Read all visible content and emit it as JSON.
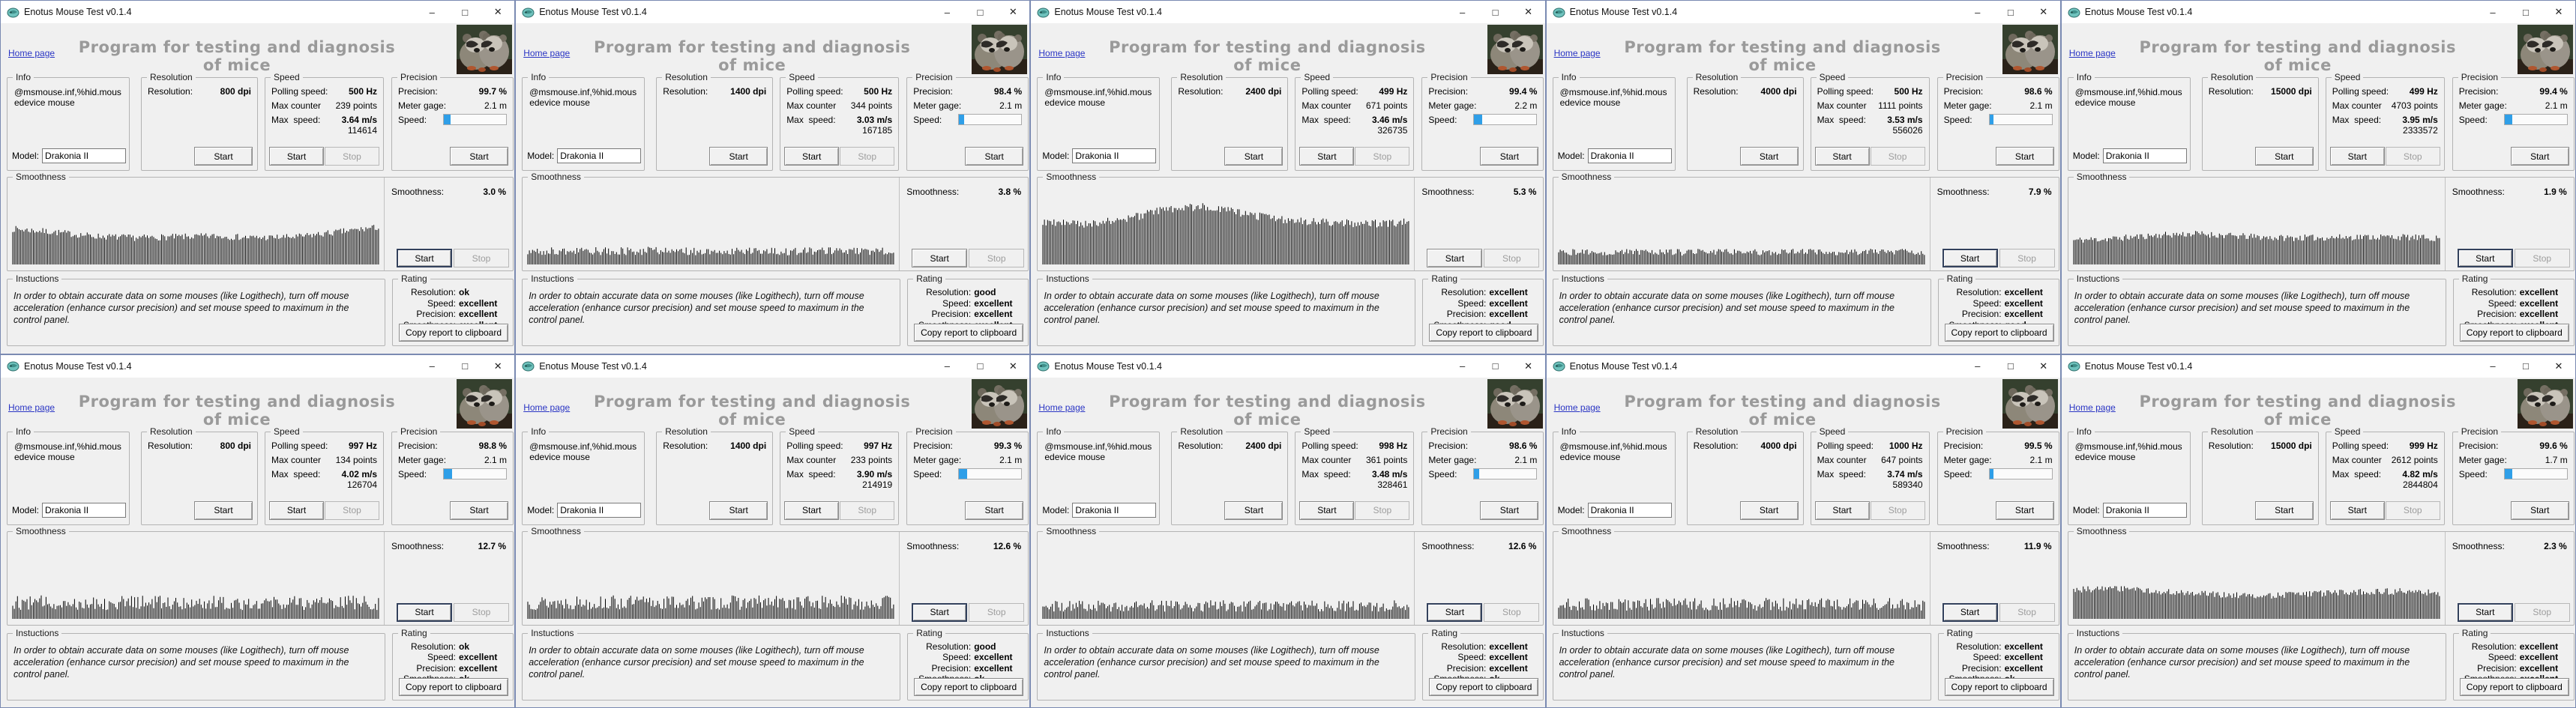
{
  "app": {
    "title": "Enotus Mouse Test v0.1.4",
    "home_link": "Home page",
    "heading": "Program for testing and diagnosis of mice",
    "info_text": "@msmouse.inf,%hid.mousedevice mouse",
    "model_value": "Drakonia II",
    "groups": {
      "info": "Info",
      "resolution": "Resolution",
      "speed": "Speed",
      "precision": "Precision",
      "smoothness": "Smoothness"
    },
    "labels": {
      "model": "Model:",
      "resolution": "Resolution:",
      "polling": "Polling speed:",
      "max_counter": "Max counter",
      "max_speed": "Max  speed:",
      "precision": "Precision:",
      "meter_gage": "Meter gage:",
      "speed": "Speed:",
      "smoothness": "Smoothness:"
    },
    "buttons": {
      "start": "Start",
      "stop": "Stop",
      "copy": "Copy report to clipboard"
    },
    "icons": {
      "minimize": "–",
      "maximize": "□",
      "close": "✕",
      "app": "raccoon-logo-icon"
    },
    "instructions_title": "Instuctions",
    "instructions_text": "In order to obtain accurate data on some mouses (like Logithech), turn off mouse acceleration (enhance cursor precision) and set mouse speed to maximum in the control panel.",
    "rating_title": "Rating",
    "rating_labels": {
      "resolution": "Resolution:",
      "speed": "Speed:",
      "precision": "Precision:",
      "smoothness": "Smoothness:"
    }
  },
  "colors": {
    "progress_blue": "#2f9fe8",
    "heading_gray": "#9a9a9a",
    "link_blue": "#2a35c4",
    "window_border": "#7a8ab2",
    "bar_color": "#000000"
  },
  "windows": [
    {
      "resolution": "800 dpi",
      "polling": "500 Hz",
      "max_counter": "239 points",
      "max_speed": "3.64 m/s",
      "counts": "114614",
      "precision": "99.7 %",
      "meter_gage": "2.1 m",
      "speed_fill_pct": 11,
      "smoothness": "3.0 %",
      "rating": {
        "resolution": "ok",
        "speed": "excellent",
        "precision": "excellent",
        "smoothness": "excellent"
      },
      "smoothness_start_focused": true,
      "histogram": {
        "envelope": [
          0.44,
          0.4,
          0.35,
          0.33,
          0.34,
          0.35,
          0.33,
          0.34,
          0.4,
          0.46
        ],
        "jitter": 0.04
      }
    },
    {
      "resolution": "1400 dpi",
      "polling": "500 Hz",
      "max_counter": "344 points",
      "max_speed": "3.03 m/s",
      "counts": "167185",
      "precision": "98.4 %",
      "meter_gage": "2.1 m",
      "speed_fill_pct": 8,
      "smoothness": "3.8 %",
      "rating": {
        "resolution": "good",
        "speed": "excellent",
        "precision": "excellent",
        "smoothness": "excellent"
      },
      "smoothness_start_focused": false,
      "histogram": {
        "envelope": [
          0.16,
          0.17,
          0.16,
          0.17,
          0.16,
          0.17,
          0.16,
          0.17,
          0.16,
          0.17
        ],
        "jitter": 0.05
      }
    },
    {
      "resolution": "2400 dpi",
      "polling": "499 Hz",
      "max_counter": "671 points",
      "max_speed": "3.46 m/s",
      "counts": "326735",
      "precision": "99.4 %",
      "meter_gage": "2.2 m",
      "speed_fill_pct": 13,
      "smoothness": "5.3 %",
      "rating": {
        "resolution": "excellent",
        "speed": "excellent",
        "precision": "excellent",
        "smoothness": "good"
      },
      "smoothness_start_focused": false,
      "histogram": {
        "envelope": [
          0.52,
          0.5,
          0.55,
          0.68,
          0.72,
          0.62,
          0.55,
          0.52,
          0.5,
          0.52
        ],
        "jitter": 0.05
      }
    },
    {
      "resolution": "4000 dpi",
      "polling": "500 Hz",
      "max_counter": "1111 points",
      "max_speed": "3.53 m/s",
      "counts": "556026",
      "precision": "98.6 %",
      "meter_gage": "2.1 m",
      "speed_fill_pct": 7,
      "smoothness": "7.9 %",
      "rating": {
        "resolution": "excellent",
        "speed": "excellent",
        "precision": "excellent",
        "smoothness": "good"
      },
      "smoothness_start_focused": true,
      "histogram": {
        "envelope": [
          0.15,
          0.15,
          0.16,
          0.15,
          0.16,
          0.15,
          0.16,
          0.15,
          0.16,
          0.15
        ],
        "jitter": 0.04
      }
    },
    {
      "resolution": "15000 dpi",
      "polling": "499 Hz",
      "max_counter": "4703 points",
      "max_speed": "3.95 m/s",
      "counts": "2333572",
      "precision": "99.4 %",
      "meter_gage": "2.1 m",
      "speed_fill_pct": 12,
      "smoothness": "1.9 %",
      "rating": {
        "resolution": "excellent",
        "speed": "excellent",
        "precision": "excellent",
        "smoothness": "excellent"
      },
      "smoothness_start_focused": true,
      "histogram": {
        "envelope": [
          0.3,
          0.32,
          0.36,
          0.38,
          0.35,
          0.33,
          0.33,
          0.34,
          0.34,
          0.32
        ],
        "jitter": 0.04
      }
    },
    {
      "resolution": "800 dpi",
      "polling": "997 Hz",
      "max_counter": "134 points",
      "max_speed": "4.02 m/s",
      "counts": "126704",
      "precision": "98.8 %",
      "meter_gage": "2.1 m",
      "speed_fill_pct": 13,
      "smoothness": "12.7 %",
      "rating": {
        "resolution": "ok",
        "speed": "excellent",
        "precision": "excellent",
        "smoothness": "ok"
      },
      "smoothness_start_focused": true,
      "histogram": {
        "envelope": [
          0.2,
          0.2,
          0.2,
          0.2,
          0.2,
          0.2,
          0.2,
          0.2,
          0.2,
          0.2
        ],
        "jitter": 0.09
      }
    },
    {
      "resolution": "1400 dpi",
      "polling": "997 Hz",
      "max_counter": "233 points",
      "max_speed": "3.90 m/s",
      "counts": "214919",
      "precision": "99.3 %",
      "meter_gage": "2.1 m",
      "speed_fill_pct": 13,
      "smoothness": "12.6 %",
      "rating": {
        "resolution": "good",
        "speed": "excellent",
        "precision": "excellent",
        "smoothness": "ok"
      },
      "smoothness_start_focused": true,
      "histogram": {
        "envelope": [
          0.2,
          0.2,
          0.2,
          0.2,
          0.2,
          0.2,
          0.2,
          0.2,
          0.2,
          0.2
        ],
        "jitter": 0.09
      }
    },
    {
      "resolution": "2400 dpi",
      "polling": "998 Hz",
      "max_counter": "361 points",
      "max_speed": "3.48 m/s",
      "counts": "328461",
      "precision": "98.6 %",
      "meter_gage": "2.1 m",
      "speed_fill_pct": 8,
      "smoothness": "12.6 %",
      "rating": {
        "resolution": "excellent",
        "speed": "excellent",
        "precision": "excellent",
        "smoothness": "ok"
      },
      "smoothness_start_focused": true,
      "histogram": {
        "envelope": [
          0.16,
          0.16,
          0.16,
          0.16,
          0.16,
          0.16,
          0.16,
          0.16,
          0.16,
          0.16
        ],
        "jitter": 0.07
      }
    },
    {
      "resolution": "4000 dpi",
      "polling": "1000 Hz",
      "max_counter": "647 points",
      "max_speed": "3.74 m/s",
      "counts": "589340",
      "precision": "99.5 %",
      "meter_gage": "2.1 m",
      "speed_fill_pct": 7,
      "smoothness": "11.9 %",
      "rating": {
        "resolution": "excellent",
        "speed": "excellent",
        "precision": "excellent",
        "smoothness": "ok"
      },
      "smoothness_start_focused": true,
      "histogram": {
        "envelope": [
          0.18,
          0.18,
          0.18,
          0.18,
          0.18,
          0.18,
          0.18,
          0.18,
          0.18,
          0.18
        ],
        "jitter": 0.08
      }
    },
    {
      "resolution": "15000 dpi",
      "polling": "999 Hz",
      "max_counter": "2612 points",
      "max_speed": "4.82 m/s",
      "counts": "2844804",
      "precision": "99.6 %",
      "meter_gage": "1.7 m",
      "speed_fill_pct": 12,
      "smoothness": "2.3 %",
      "rating": {
        "resolution": "excellent",
        "speed": "excellent",
        "precision": "excellent",
        "smoothness": "excellent"
      },
      "smoothness_start_focused": true,
      "histogram": {
        "envelope": [
          0.36,
          0.38,
          0.34,
          0.31,
          0.29,
          0.29,
          0.31,
          0.33,
          0.34,
          0.32
        ],
        "jitter": 0.04
      }
    }
  ]
}
